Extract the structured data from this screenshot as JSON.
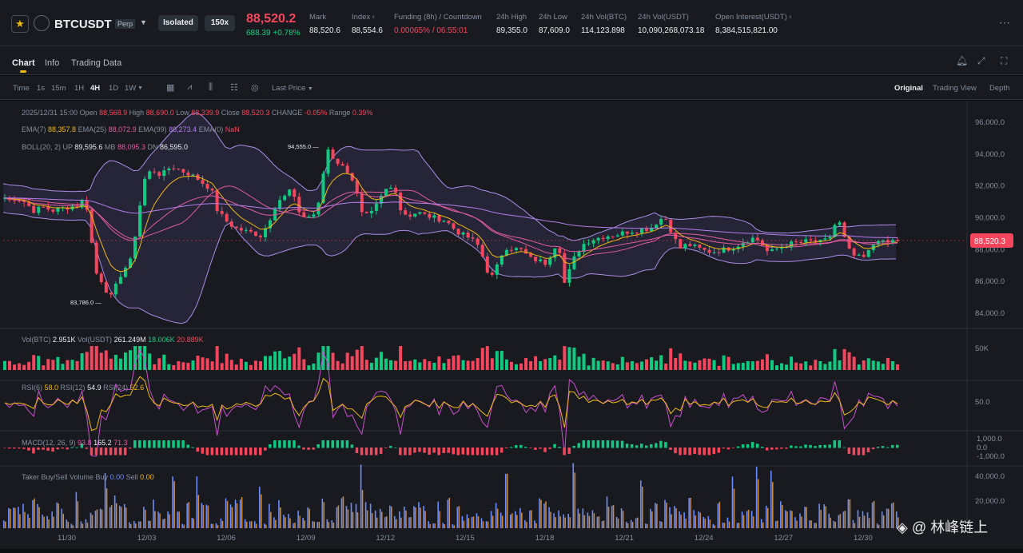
{
  "header": {
    "symbol": "BTCUSDT",
    "contract_type": "Perp",
    "margin_mode": "Isolated",
    "leverage": "150x",
    "last_price": "88,520.2",
    "change": "688.39 +0.78%",
    "stats": [
      {
        "label": "Mark",
        "value": "88,520.6"
      },
      {
        "label": "Index",
        "value": "88,554.6"
      },
      {
        "label": "Funding (8h) / Countdown",
        "value": "0.00065% / 06:55:01"
      },
      {
        "label": "24h High",
        "value": "89,355.0"
      },
      {
        "label": "24h Low",
        "value": "87,609.0"
      },
      {
        "label": "24h Vol(BTC)",
        "value": "114,123.898"
      },
      {
        "label": "24h Vol(USDT)",
        "value": "10,090,268,073.18"
      },
      {
        "label": "Open Interest(USDT)",
        "value": "8,384,515,821.00"
      }
    ],
    "colors": {
      "up": "#0ecb81",
      "down": "#f6465d",
      "accent": "#f0b90b"
    }
  },
  "tabs": [
    "Chart",
    "Info",
    "Trading Data"
  ],
  "toolbar": {
    "intervals": [
      "Time",
      "1s",
      "15m",
      "1H",
      "4H",
      "1D",
      "1W"
    ],
    "active_interval": "4H",
    "price_type": "Last Price",
    "views": [
      "Original",
      "Trading View",
      "Depth"
    ],
    "active_view": "Original"
  },
  "legend": {
    "ohlc": [
      {
        "k": "2025/12/31 15:00",
        "v": ""
      },
      {
        "k": "Open",
        "v": "88,568.9"
      },
      {
        "k": "High",
        "v": "88,690.0"
      },
      {
        "k": "Low",
        "v": "88,339.9"
      },
      {
        "k": "Close",
        "v": "88,520.3"
      },
      {
        "k": "CHANGE",
        "v": "-0.05%"
      },
      {
        "k": "Range",
        "v": "0.39%"
      }
    ],
    "ema": [
      {
        "k": "EMA(7)",
        "v": "88,357.8",
        "color": "#f0b90b"
      },
      {
        "k": "EMA(25)",
        "v": "88,072.9",
        "color": "#e05ca0"
      },
      {
        "k": "EMA(99)",
        "v": "88,273.4",
        "color": "#b37feb"
      },
      {
        "k": "EMA(0)",
        "v": "NaN",
        "color": "#f6465d"
      }
    ],
    "boll": [
      {
        "k": "BOLL(20, 2)",
        "v": ""
      },
      {
        "k": "UP",
        "v": "89,595.6",
        "color": "#eaecef"
      },
      {
        "k": "MB",
        "v": "88,095.3",
        "color": "#e05ca0"
      },
      {
        "k": "DN",
        "v": "86,595.0",
        "color": "#eaecef"
      }
    ],
    "vol": [
      {
        "k": "Vol(BTC)",
        "v": "2.951K",
        "color": "#eaecef"
      },
      {
        "k": "Vol(USDT)",
        "v": "261.249M",
        "color": "#eaecef"
      },
      {
        "k": "",
        "v": "18.006K",
        "color": "#0ecb81"
      },
      {
        "k": "",
        "v": "20.889K",
        "color": "#f6465d"
      }
    ],
    "rsi": [
      {
        "k": "RSI(6)",
        "v": "58.0",
        "color": "#f0b90b"
      },
      {
        "k": "RSI(12)",
        "v": "54.9",
        "color": "#eaecef"
      },
      {
        "k": "RSI(24)",
        "v": "52.6",
        "color": "#f0b90b"
      }
    ],
    "macd": [
      {
        "k": "MACD(12, 26, 9)",
        "v": "93.8",
        "color": "#e05ca0"
      },
      {
        "k": "",
        "v": "165.2",
        "color": "#eaecef"
      },
      {
        "k": "",
        "v": "71.3",
        "color": "#e05ca0"
      }
    ],
    "taker": [
      {
        "k": "Taker Buy/Sell Volume",
        "v": ""
      },
      {
        "k": "Buy",
        "v": "0.00",
        "color": "#6c8cff"
      },
      {
        "k": "Sell",
        "v": "0.00",
        "color": "#f0b90b"
      }
    ]
  },
  "chart_data": {
    "type": "candlestick",
    "price_axis_ticks": [
      "96,000.0",
      "94,000.0",
      "92,000.0",
      "90,000.0",
      "88,000.0",
      "86,000.0",
      "84,000.0"
    ],
    "ylim": [
      83000,
      96800
    ],
    "x_ticks": [
      "11/30",
      "12/03",
      "12/06",
      "12/09",
      "12/12",
      "12/15",
      "12/18",
      "12/21",
      "12/24",
      "12/27",
      "12/30"
    ],
    "high_marker": "94,555.0",
    "low_marker": "83,786.0",
    "current_price_label": "88,520.3",
    "vol_axis_tick": "50K",
    "rsi_axis_tick": "50.0",
    "macd_axis_ticks": [
      "1,000.0",
      "0.0",
      "-1,000.0"
    ],
    "taker_axis_ticks": [
      "40,000.0",
      "20,000.0"
    ],
    "close_path": [
      [
        0,
        91400
      ],
      [
        8,
        91000
      ],
      [
        18,
        91200
      ],
      [
        30,
        90900
      ],
      [
        40,
        90400
      ],
      [
        52,
        90600
      ],
      [
        65,
        90400
      ],
      [
        80,
        90600
      ],
      [
        95,
        90700
      ],
      [
        105,
        91200
      ],
      [
        110,
        89300
      ],
      [
        118,
        86500
      ],
      [
        128,
        85800
      ],
      [
        135,
        84800
      ],
      [
        140,
        85300
      ],
      [
        150,
        86500
      ],
      [
        162,
        87300
      ],
      [
        170,
        89800
      ],
      [
        178,
        92300
      ],
      [
        188,
        93000
      ],
      [
        200,
        92600
      ],
      [
        212,
        93200
      ],
      [
        225,
        92900
      ],
      [
        235,
        92700
      ],
      [
        245,
        92400
      ],
      [
        255,
        92000
      ],
      [
        262,
        91800
      ],
      [
        270,
        90400
      ],
      [
        280,
        89800
      ],
      [
        292,
        89300
      ],
      [
        305,
        89100
      ],
      [
        315,
        89000
      ],
      [
        325,
        88800
      ],
      [
        335,
        89800
      ],
      [
        345,
        91000
      ],
      [
        355,
        91300
      ],
      [
        362,
        91800
      ],
      [
        370,
        90500
      ],
      [
        380,
        89900
      ],
      [
        395,
        90300
      ],
      [
        402,
        92600
      ],
      [
        408,
        94300
      ],
      [
        415,
        93700
      ],
      [
        425,
        93200
      ],
      [
        435,
        92800
      ],
      [
        442,
        92000
      ],
      [
        450,
        90200
      ],
      [
        460,
        90000
      ],
      [
        470,
        90800
      ],
      [
        480,
        91700
      ],
      [
        492,
        91900
      ],
      [
        500,
        90300
      ],
      [
        510,
        90100
      ],
      [
        520,
        90300
      ],
      [
        530,
        90100
      ],
      [
        545,
        89900
      ],
      [
        555,
        89800
      ],
      [
        565,
        89300
      ],
      [
        575,
        88900
      ],
      [
        585,
        88700
      ],
      [
        595,
        88300
      ],
      [
        602,
        87500
      ],
      [
        608,
        86600
      ],
      [
        615,
        86200
      ],
      [
        625,
        87600
      ],
      [
        632,
        88100
      ],
      [
        642,
        88000
      ],
      [
        652,
        87900
      ],
      [
        660,
        87400
      ],
      [
        670,
        87300
      ],
      [
        680,
        87100
      ],
      [
        690,
        87900
      ],
      [
        695,
        88500
      ],
      [
        700,
        87600
      ],
      [
        705,
        85600
      ],
      [
        712,
        86900
      ],
      [
        720,
        87800
      ],
      [
        730,
        88400
      ],
      [
        740,
        88600
      ],
      [
        755,
        88800
      ],
      [
        770,
        88900
      ],
      [
        785,
        89100
      ],
      [
        800,
        89200
      ],
      [
        812,
        89300
      ],
      [
        822,
        89800
      ],
      [
        830,
        90000
      ],
      [
        838,
        89100
      ],
      [
        848,
        88000
      ],
      [
        858,
        88300
      ],
      [
        868,
        88100
      ],
      [
        878,
        87900
      ],
      [
        888,
        87800
      ],
      [
        898,
        87900
      ],
      [
        908,
        88000
      ],
      [
        920,
        88200
      ],
      [
        930,
        88500
      ],
      [
        942,
        88700
      ],
      [
        950,
        88400
      ],
      [
        960,
        87700
      ],
      [
        970,
        88000
      ],
      [
        985,
        88300
      ],
      [
        1000,
        88400
      ],
      [
        1010,
        88500
      ],
      [
        1025,
        88400
      ],
      [
        1035,
        88600
      ],
      [
        1045,
        89800
      ],
      [
        1050,
        89500
      ],
      [
        1058,
        88000
      ],
      [
        1068,
        87500
      ],
      [
        1078,
        87400
      ],
      [
        1088,
        88000
      ],
      [
        1095,
        88700
      ],
      [
        1105,
        88300
      ],
      [
        1115,
        88500
      ],
      [
        1123,
        88520
      ]
    ]
  }
}
